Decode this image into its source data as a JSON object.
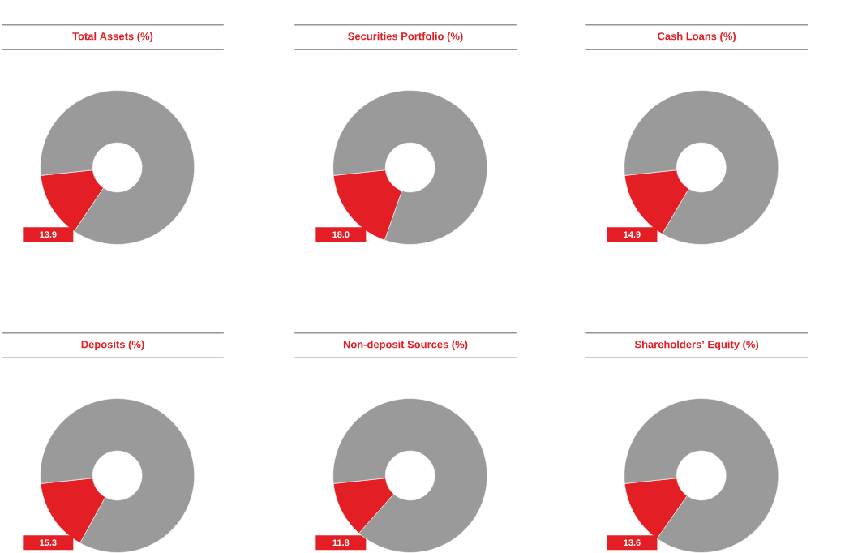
{
  "chart_data": [
    {
      "type": "donut",
      "title": "Total Assets (%)",
      "categories": [
        null,
        null
      ],
      "values": [
        13.9,
        86.1
      ],
      "colors": [
        "#e31e24",
        "#9a9a9a"
      ],
      "value_labels": [
        "13.9",
        null
      ]
    },
    {
      "type": "donut",
      "title": "Securities Portfolio (%)",
      "categories": [
        null,
        null
      ],
      "values": [
        18.0,
        82.0
      ],
      "colors": [
        "#e31e24",
        "#9a9a9a"
      ],
      "value_labels": [
        "18.0",
        null
      ]
    },
    {
      "type": "donut",
      "title": "Cash Loans (%)",
      "categories": [
        null,
        null
      ],
      "values": [
        14.9,
        85.1
      ],
      "colors": [
        "#e31e24",
        "#9a9a9a"
      ],
      "value_labels": [
        "14.9",
        null
      ]
    },
    {
      "type": "donut",
      "title": "Deposits (%)",
      "categories": [
        null,
        null
      ],
      "values": [
        15.3,
        84.7
      ],
      "colors": [
        "#e31e24",
        "#9a9a9a"
      ],
      "value_labels": [
        "15.3",
        null
      ]
    },
    {
      "type": "donut",
      "title": "Non-deposit Sources (%)",
      "categories": [
        null,
        null
      ],
      "values": [
        11.8,
        88.2
      ],
      "colors": [
        "#e31e24",
        "#9a9a9a"
      ],
      "value_labels": [
        "11.8",
        null
      ]
    },
    {
      "type": "donut",
      "title": "Shareholders’ Equity (%)",
      "categories": [
        null,
        null
      ],
      "values": [
        13.6,
        86.4
      ],
      "colors": [
        "#e31e24",
        "#9a9a9a"
      ],
      "value_labels": [
        "13.6",
        null
      ]
    }
  ]
}
